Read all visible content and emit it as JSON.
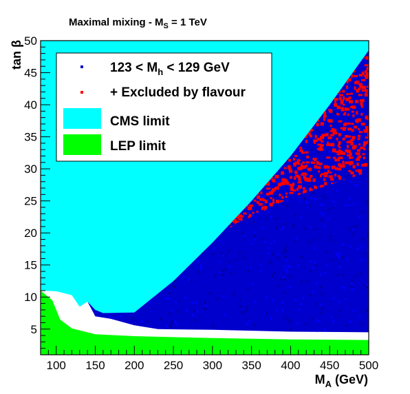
{
  "chart_data": {
    "type": "heatmap",
    "title": "Maximal mixing - M",
    "title_sub": "S",
    "title_tail": " = 1 TeV",
    "xlabel": "M",
    "xlabel_sub": "A",
    "xlabel_tail": " (GeV)",
    "ylabel": "tan β",
    "xlim": [
      80,
      500
    ],
    "ylim": [
      1,
      50
    ],
    "xticks": [
      100,
      150,
      200,
      250,
      300,
      350,
      400,
      450,
      500
    ],
    "yticks": [
      5,
      10,
      15,
      20,
      25,
      30,
      35,
      40,
      45,
      50
    ],
    "legend_placement": "top-left",
    "legend": [
      {
        "label_pre": "123 < M",
        "label_sub": "h",
        "label_post": " < 129 GeV",
        "color": "#0000cc",
        "marker": "point"
      },
      {
        "label_pre": "+ Excluded by flavour",
        "label_sub": "",
        "label_post": "",
        "color": "#ff0000",
        "marker": "point"
      },
      {
        "label_pre": "CMS limit",
        "label_sub": "",
        "label_post": "",
        "color": "#00ffff",
        "marker": "box"
      },
      {
        "label_pre": "LEP limit",
        "label_sub": "",
        "label_post": "",
        "color": "#00ff00",
        "marker": "box"
      }
    ],
    "regions": {
      "cms_limit_boundary": [
        [
          80,
          11
        ],
        [
          100,
          10.9
        ],
        [
          120,
          10.3
        ],
        [
          130,
          8.5
        ],
        [
          140,
          9.3
        ],
        [
          150,
          8.0
        ],
        [
          160,
          7.5
        ],
        [
          200,
          7.6
        ],
        [
          250,
          12.5
        ],
        [
          300,
          18.5
        ],
        [
          350,
          25
        ],
        [
          400,
          32
        ],
        [
          450,
          40
        ],
        [
          500,
          48.5
        ]
      ],
      "lep_limit_boundary": [
        [
          80,
          11
        ],
        [
          95,
          9.5
        ],
        [
          105,
          6.5
        ],
        [
          120,
          5.1
        ],
        [
          150,
          4.2
        ],
        [
          200,
          3.9
        ],
        [
          300,
          3.6
        ],
        [
          400,
          3.4
        ],
        [
          500,
          3.3
        ]
      ],
      "higgs_mass_band_lower": [
        [
          140,
          9.3
        ],
        [
          150,
          7.0
        ],
        [
          170,
          6.6
        ],
        [
          200,
          5.6
        ],
        [
          230,
          5.0
        ],
        [
          300,
          4.9
        ],
        [
          400,
          4.6
        ],
        [
          500,
          4.5
        ]
      ],
      "flavour_exclusion_onset": [
        [
          300,
          18.5
        ],
        [
          330,
          21.5
        ],
        [
          350,
          22.5
        ],
        [
          400,
          25.5
        ],
        [
          450,
          27.5
        ],
        [
          500,
          29.5
        ]
      ]
    }
  }
}
